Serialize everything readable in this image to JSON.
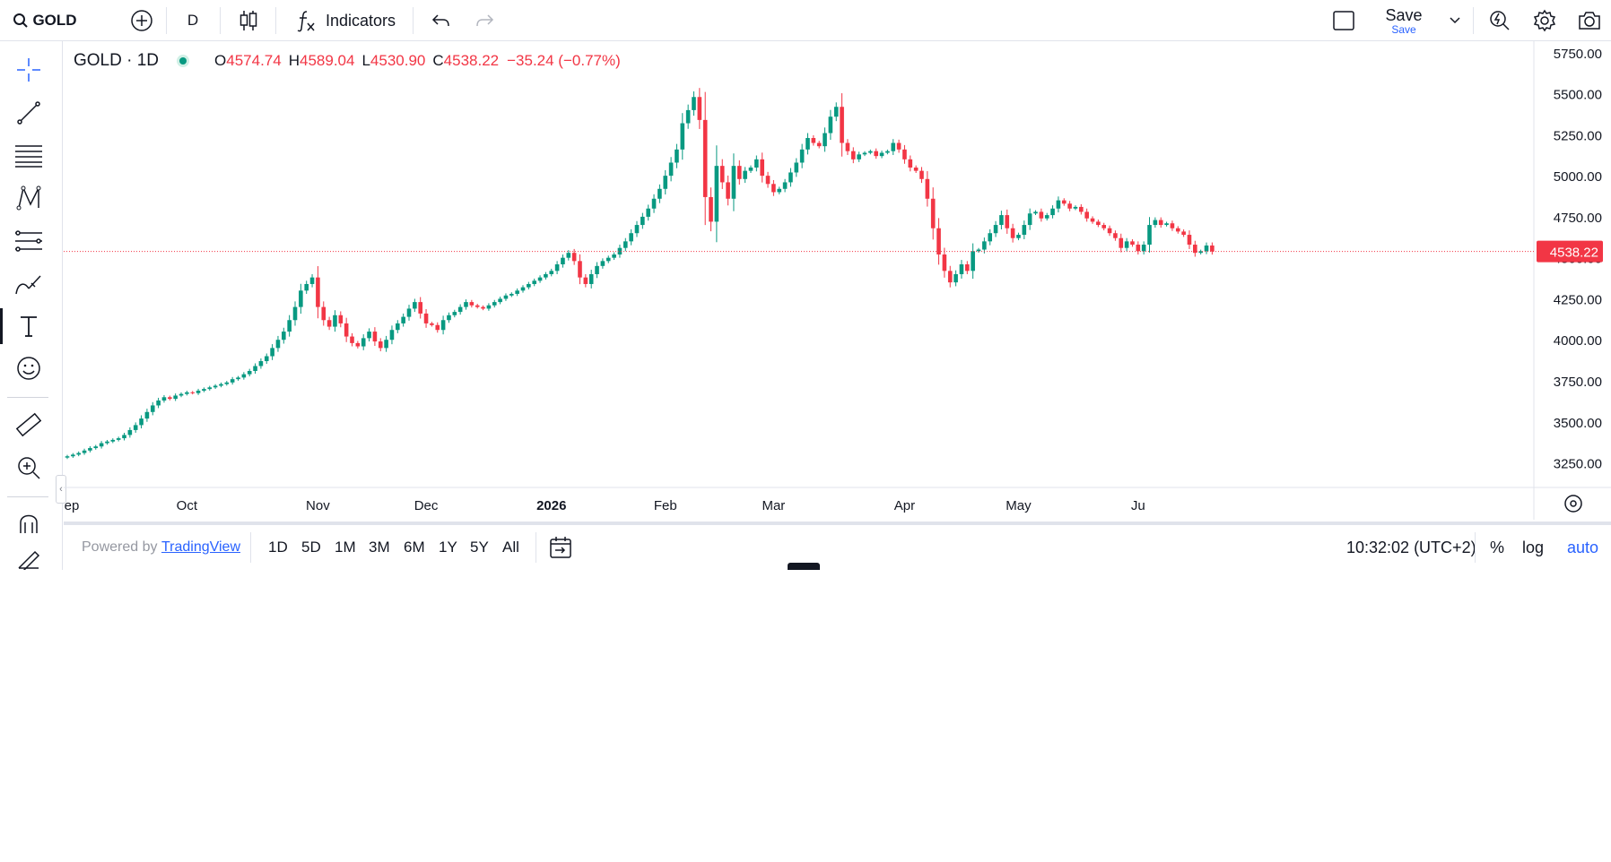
{
  "toolbar": {
    "symbol": "GOLD",
    "interval": "D",
    "indicators_label": "Indicators",
    "save_label": "Save",
    "save_sublabel": "Save"
  },
  "legend": {
    "title": "GOLD · 1D",
    "o_key": "O",
    "open": "4574.74",
    "h_key": "H",
    "high": "4589.04",
    "l_key": "L",
    "low": "4530.90",
    "c_key": "C",
    "close": "4538.22",
    "change": "−35.24 (−0.77%)"
  },
  "bottom": {
    "powered_by": "Powered by",
    "brand": "TradingView",
    "ranges": [
      "1D",
      "5D",
      "1M",
      "3M",
      "6M",
      "1Y",
      "5Y",
      "All"
    ],
    "clock": "10:32:02 (UTC+2)",
    "percent_label": "%",
    "log_label": "log",
    "auto_label": "auto"
  },
  "left_tools": [
    "crosshair-icon",
    "trend-line-icon",
    "fib-icon",
    "pattern-icon",
    "prediction-icon",
    "brush-icon",
    "text-icon",
    "emoji-icon",
    "ruler-icon",
    "zoom-in-icon",
    "magnet-icon",
    "lock-draw-icon"
  ],
  "colors": {
    "up": "#089981",
    "down": "#f23645",
    "accent": "#2962ff"
  },
  "chart_data": {
    "type": "candlestick",
    "symbol": "GOLD",
    "interval": "1D",
    "y_ticks": [
      5750,
      5500,
      5250,
      5000,
      4750,
      4500,
      4250,
      4000,
      3750,
      3500,
      3250
    ],
    "y_tick_labels": [
      "5750.00",
      "5500.00",
      "5250.00",
      "5000.00",
      "4750.00",
      "4500.00",
      "4250.00",
      "4000.00",
      "3750.00",
      "3500.00",
      "3250.00"
    ],
    "ylim": [
      3100,
      5820
    ],
    "last_price": 4538.22,
    "last_price_label": "4538.22",
    "x_labels": [
      {
        "label": "Sep",
        "index": 0,
        "bold": false
      },
      {
        "label": "Oct",
        "index": 21,
        "bold": false
      },
      {
        "label": "Nov",
        "index": 44,
        "bold": false
      },
      {
        "label": "Dec",
        "index": 63,
        "bold": false
      },
      {
        "label": "2026",
        "index": 85,
        "bold": true
      },
      {
        "label": "Feb",
        "index": 105,
        "bold": false
      },
      {
        "label": "Mar",
        "index": 124,
        "bold": false
      },
      {
        "label": "Apr",
        "index": 147,
        "bold": false
      },
      {
        "label": "May",
        "index": 167,
        "bold": false
      },
      {
        "label": "Ju",
        "index": 188,
        "bold": false
      }
    ],
    "closes": [
      3290,
      3300,
      3310,
      3325,
      3340,
      3350,
      3370,
      3380,
      3390,
      3400,
      3420,
      3450,
      3480,
      3520,
      3560,
      3600,
      3630,
      3650,
      3640,
      3660,
      3670,
      3680,
      3675,
      3690,
      3700,
      3710,
      3720,
      3730,
      3740,
      3760,
      3770,
      3790,
      3810,
      3840,
      3870,
      3900,
      3950,
      4000,
      4050,
      4120,
      4200,
      4300,
      4340,
      4380,
      4200,
      4120,
      4080,
      4150,
      4100,
      4020,
      3980,
      3960,
      4010,
      4050,
      3990,
      3950,
      4000,
      4060,
      4100,
      4140,
      4190,
      4230,
      4160,
      4100,
      4090,
      4060,
      4120,
      4150,
      4170,
      4200,
      4230,
      4210,
      4200,
      4190,
      4210,
      4230,
      4250,
      4270,
      4280,
      4300,
      4320,
      4340,
      4360,
      4380,
      4400,
      4420,
      4460,
      4500,
      4530,
      4480,
      4380,
      4340,
      4400,
      4450,
      4480,
      4500,
      4520,
      4560,
      4600,
      4650,
      4700,
      4750,
      4800,
      4860,
      4920,
      5000,
      5080,
      5160,
      5320,
      5400,
      5480,
      5340,
      4870,
      4720,
      5060,
      4960,
      4860,
      5060,
      4980,
      5030,
      5050,
      5100,
      5000,
      4950,
      4900,
      4920,
      4960,
      5020,
      5080,
      5160,
      5230,
      5200,
      5180,
      5260,
      5360,
      5420,
      5200,
      5150,
      5100,
      5130,
      5140,
      5150,
      5120,
      5140,
      5150,
      5200,
      5160,
      5100,
      5050,
      5030,
      4980,
      4860,
      4680,
      4520,
      4420,
      4350,
      4400,
      4460,
      4420,
      4540,
      4550,
      4600,
      4650,
      4700,
      4760,
      4680,
      4620,
      4640,
      4700,
      4770,
      4780,
      4740,
      4760,
      4800,
      4850,
      4830,
      4800,
      4810,
      4780,
      4740,
      4720,
      4700,
      4680,
      4650,
      4620,
      4560,
      4600,
      4580,
      4540,
      4580,
      4700,
      4730,
      4700,
      4710,
      4680,
      4660,
      4640,
      4580,
      4530,
      4540,
      4574.74,
      4538.22
    ]
  }
}
